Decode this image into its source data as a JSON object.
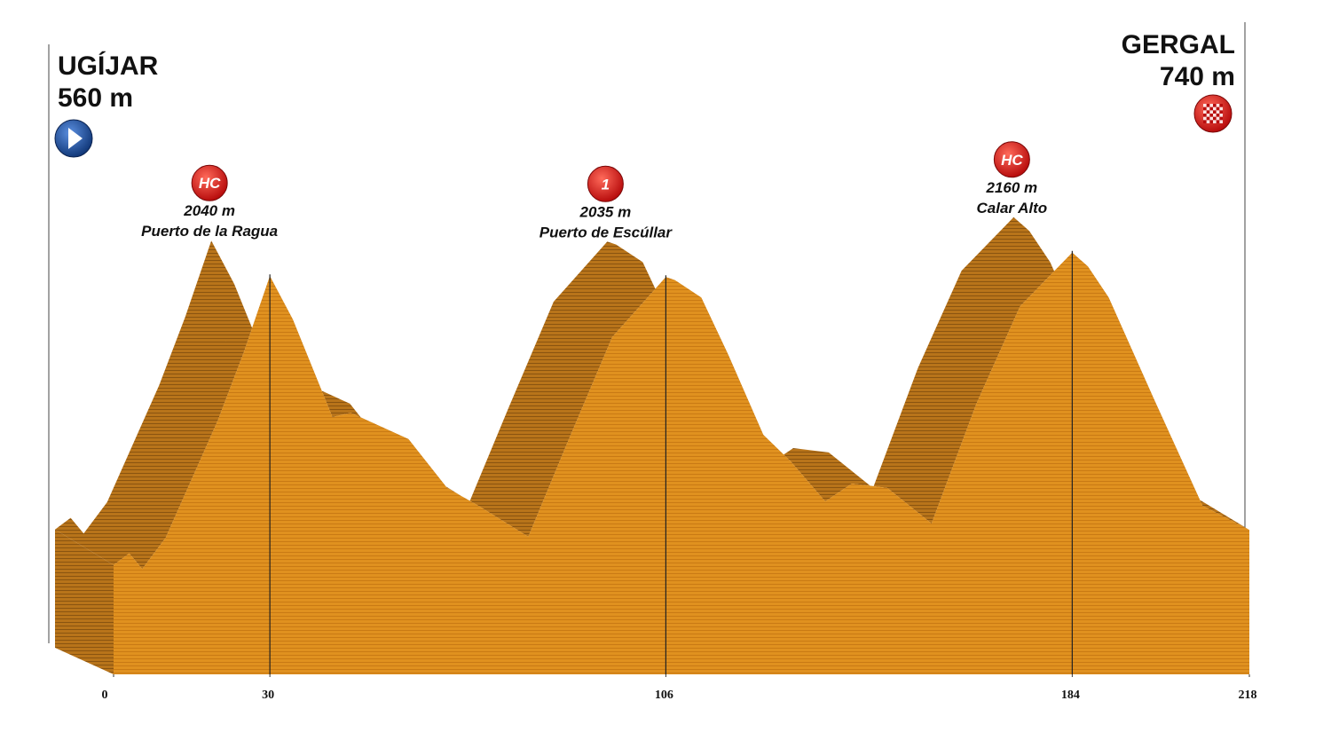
{
  "chart_data": {
    "type": "area",
    "x": [
      0,
      3,
      5.5,
      10,
      15,
      20,
      25,
      30,
      34.4,
      42,
      45.5,
      56.6,
      64,
      70,
      79.6,
      87,
      95.7,
      106,
      107.7,
      112.8,
      118,
      124.7,
      130,
      136.6,
      141.7,
      148.5,
      157,
      165.6,
      174,
      184,
      187,
      191,
      199.7,
      209,
      218
    ],
    "values": [
      560,
      620,
      540,
      700,
      1000,
      1300,
      1650,
      2040,
      1818,
      1318,
      1340,
      1205,
      955,
      864,
      705,
      1180,
      1727,
      2035,
      2020,
      1930,
      1636,
      1227,
      1090,
      886,
      977,
      955,
      773,
      1386,
      1886,
      2160,
      2090,
      1930,
      1409,
      864,
      740
    ],
    "color": "#e0911f",
    "xlim": [
      0,
      218
    ],
    "ylim": [
      0,
      2500
    ],
    "xticks": [
      0,
      30,
      106,
      184,
      218
    ],
    "start": {
      "name": "UGÍJAR",
      "elevation": "560 m"
    },
    "finish": {
      "name": "GERGAL",
      "elevation": "740 m"
    },
    "climbs": [
      {
        "x": 30,
        "category": "HC",
        "altitude": "2040 m",
        "name": "Puerto de la Ragua"
      },
      {
        "x": 106,
        "category": "1",
        "altitude": "2035  m",
        "name": "Puerto de Escúllar"
      },
      {
        "x": 184,
        "category": "HC",
        "altitude": "2160  m",
        "name": "Calar Alto"
      }
    ]
  }
}
